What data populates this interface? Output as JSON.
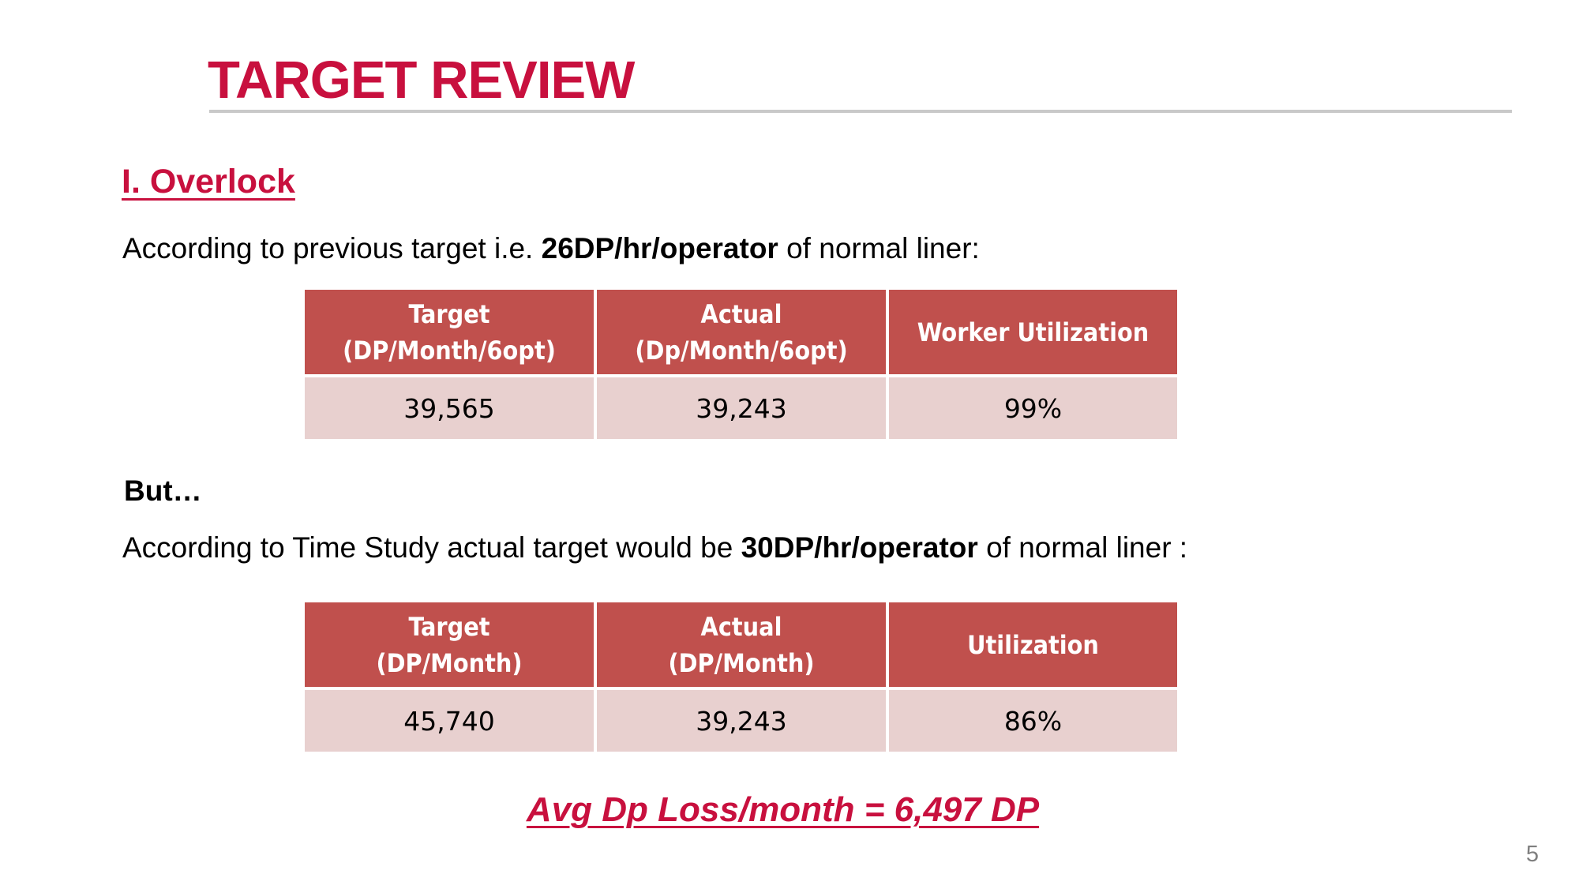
{
  "slide": {
    "title": "TARGET REVIEW",
    "section_heading": "I. Overlock",
    "paragraph_1": {
      "prefix": "According to previous target i.e. ",
      "bold": "26DP/hr/operator",
      "suffix": " of normal liner:"
    },
    "but_label": "But…",
    "paragraph_2": {
      "prefix": "According to Time Study actual target would be ",
      "bold": "30DP/hr/operator",
      "suffix": " of normal liner :"
    },
    "table_1": {
      "headers": [
        {
          "line1": "Target",
          "line2": "(DP/Month/6opt)"
        },
        {
          "line1": "Actual",
          "line2": "(Dp/Month/6opt)"
        },
        {
          "line1": "Worker Utilization",
          "line2": ""
        }
      ],
      "row": [
        "39,565",
        "39,243",
        "99%"
      ]
    },
    "table_2": {
      "headers": [
        {
          "line1": "Target",
          "line2": "(DP/Month)"
        },
        {
          "line1": "Actual",
          "line2": "(DP/Month)"
        },
        {
          "line1": "Utilization",
          "line2": ""
        }
      ],
      "row": [
        "45,740",
        "39,243",
        "86%"
      ]
    },
    "conclusion": "Avg Dp Loss/month = 6,497 DP",
    "page_number": "5"
  },
  "colors": {
    "accent": "#c8103e",
    "table_header": "#c0504d",
    "table_cell": "#e8d0cf",
    "rule": "#c9c9c9"
  }
}
